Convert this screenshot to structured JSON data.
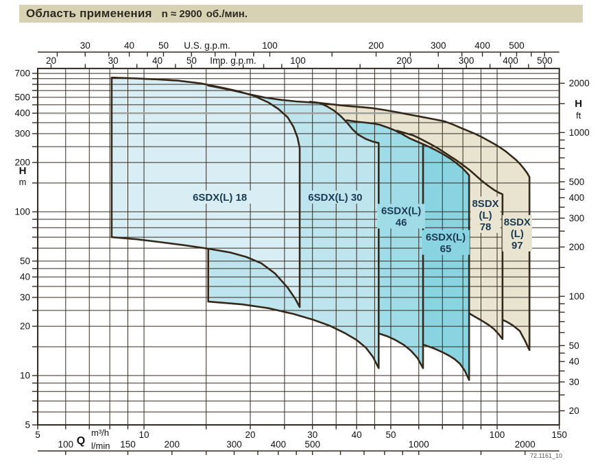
{
  "title": {
    "main": "Область применения",
    "speed": "n ≈ 2900",
    "unit": "об./мин."
  },
  "watermark": "72.1161_10",
  "colors": {
    "title_bar_bg": "#d8d2b4",
    "title_text": "#2e2920",
    "grid": "#33291f",
    "envelope": "#33281a",
    "highlight_line": "#9e9e98",
    "label_text": "#1c3a52"
  },
  "chart_data": {
    "type": "area",
    "title": "Область применения n ≈ 2900 об./мин.",
    "x_axis": {
      "symbol": "Q",
      "units": [
        "m³/h",
        "l/min"
      ]
    },
    "y_axis_left": {
      "symbol": "H",
      "unit": "m"
    },
    "y_axis_right": {
      "symbol": "H",
      "unit": "ft"
    },
    "xlim_m3h": [
      5,
      150
    ],
    "ylim_m": [
      5,
      750
    ],
    "grid_on": true,
    "highlight_line_h_m": 400,
    "grid": {
      "x_m3h": [
        5,
        6,
        7,
        8,
        9,
        10,
        15,
        20,
        25,
        30,
        35,
        40,
        45,
        50,
        60,
        70,
        80,
        90,
        100,
        150
      ],
      "y_m": [
        5,
        6,
        7,
        8,
        9,
        10,
        15,
        20,
        25,
        30,
        35,
        40,
        45,
        50,
        60,
        70,
        80,
        90,
        100,
        150,
        200,
        250,
        300,
        350,
        400,
        450,
        500,
        550,
        600,
        650,
        700
      ]
    },
    "axes": {
      "us_gpm": {
        "unit_label": "U.S. g.p.m.",
        "ticks": [
          25,
          30,
          35,
          40,
          45,
          50,
          60,
          70,
          80,
          90,
          100,
          150,
          200,
          250,
          300,
          350,
          400,
          450,
          500,
          550,
          600
        ],
        "labeled": [
          30,
          40,
          50,
          100,
          200,
          300,
          400,
          500
        ]
      },
      "imp_gpm": {
        "unit_label": "Imp. g.p.m.",
        "ticks": [
          20,
          25,
          30,
          35,
          40,
          45,
          50,
          60,
          70,
          80,
          90,
          100,
          150,
          200,
          250,
          300,
          350,
          400,
          450,
          500
        ],
        "labeled": [
          20,
          30,
          40,
          50,
          100,
          200,
          300,
          400,
          500
        ]
      },
      "m3h": {
        "unit_label": "m³/h",
        "ticks": [
          5,
          6,
          7,
          8,
          9,
          10,
          15,
          20,
          25,
          30,
          35,
          40,
          45,
          50,
          60,
          70,
          80,
          90,
          100,
          150
        ],
        "labeled": [
          5,
          10,
          20,
          30,
          40,
          50,
          100,
          150
        ]
      },
      "lmin": {
        "unit_label": "l/min",
        "ticks": [
          100,
          150,
          200,
          250,
          300,
          350,
          400,
          450,
          500,
          600,
          700,
          800,
          900,
          1000,
          1500,
          2000
        ],
        "labeled": [
          100,
          150,
          200,
          300,
          400,
          500,
          1000,
          2000
        ]
      },
      "h_m": {
        "symbol": "H",
        "unit_label": "m",
        "labeled": [
          700,
          500,
          400,
          300,
          200,
          100,
          50,
          40,
          30,
          20,
          10,
          5
        ]
      },
      "h_ft": {
        "symbol": "H",
        "unit_label": "ft",
        "ticks": [
          20,
          25,
          30,
          35,
          40,
          45,
          50,
          60,
          70,
          80,
          90,
          100,
          150,
          200,
          250,
          300,
          350,
          400,
          450,
          500,
          600,
          700,
          800,
          900,
          1000,
          1500,
          2000
        ],
        "labeled": [
          2000,
          1000,
          500,
          400,
          300,
          200,
          100,
          50,
          40,
          30,
          20
        ]
      }
    },
    "regions": [
      {
        "id": "8sdx-l-97",
        "name": "8SDX (L) 97",
        "label_lines": [
          "8SDX",
          "(L)",
          "97"
        ],
        "label_at_qh": [
          114,
          74
        ],
        "fill": "#e9e4d0",
        "stroke_points": [
          [
            29.5,
            470
          ],
          [
            32,
            460
          ],
          [
            35,
            450
          ],
          [
            38,
            442
          ],
          [
            41,
            436
          ],
          [
            44.2,
            430
          ],
          [
            47.5,
            420
          ],
          [
            51,
            409
          ],
          [
            54.5,
            398
          ],
          [
            57.7,
            389
          ],
          [
            61.5,
            379
          ],
          [
            65.5,
            369
          ],
          [
            69,
            361
          ],
          [
            71.2,
            356
          ],
          [
            75,
            341
          ],
          [
            79,
            325
          ],
          [
            83,
            311
          ],
          [
            86.4,
            300
          ],
          [
            90.5,
            286
          ],
          [
            95,
            270
          ],
          [
            99,
            257
          ],
          [
            101.7,
            248
          ],
          [
            105.5,
            235
          ],
          [
            109.5,
            220
          ],
          [
            113.5,
            206
          ],
          [
            116.1,
            196
          ],
          [
            119,
            184
          ],
          [
            121.5,
            173
          ],
          [
            123.5,
            163
          ],
          [
            123.5,
            14.3
          ],
          [
            120,
            16.3
          ],
          [
            116,
            18.7
          ],
          [
            111,
            20.2
          ],
          [
            107,
            21.2
          ],
          [
            103.6,
            21.9
          ]
        ],
        "close_points": [
          [
            92,
            24.5
          ],
          [
            80,
            26.8
          ],
          [
            68,
            28.6
          ],
          [
            55,
            30.5
          ],
          [
            42,
            32
          ],
          [
            29.5,
            33.5
          ]
        ],
        "closed_stroke": false
      },
      {
        "id": "8sdx-l-78",
        "name": "8SDX (L) 78",
        "label_lines": [
          "8SDX",
          "(L)",
          "78"
        ],
        "label_at_qh": [
          92.7,
          96
        ],
        "fill": "#eae5d2",
        "stroke_points": [
          [
            52,
            313
          ],
          [
            55,
            302
          ],
          [
            58,
            292
          ],
          [
            60,
            282
          ],
          [
            62,
            272
          ],
          [
            65,
            258
          ],
          [
            68,
            244
          ],
          [
            71,
            230
          ],
          [
            73.2,
            220
          ],
          [
            76.5,
            207
          ],
          [
            80,
            193
          ],
          [
            83.5,
            180
          ],
          [
            86.4,
            169
          ],
          [
            90,
            156
          ],
          [
            94,
            145
          ],
          [
            98,
            136
          ],
          [
            101,
            131
          ],
          [
            103.6,
            128
          ],
          [
            103.6,
            16.7
          ],
          [
            101,
            17.9
          ],
          [
            98,
            19.2
          ],
          [
            95.5,
            20.1
          ],
          [
            93.2,
            20.8
          ],
          [
            90,
            21.8
          ],
          [
            86.5,
            22.9
          ],
          [
            83.6,
            23.9
          ]
        ],
        "close_points": [
          [
            75,
            26
          ],
          [
            66,
            28
          ],
          [
            58,
            29.6
          ],
          [
            52,
            31
          ]
        ],
        "closed_stroke": false
      },
      {
        "id": "6sdx-l-65",
        "name": "6SDX(L) 65",
        "label_lines": [
          "6SDX(L)",
          "65"
        ],
        "label_at_qh": [
          71.5,
          65
        ],
        "fill": "#8ad4e1",
        "stroke_points": [
          [
            61.7,
            259
          ],
          [
            64.5,
            248
          ],
          [
            67.5,
            236
          ],
          [
            70.5,
            224
          ],
          [
            73.5,
            212
          ],
          [
            76.5,
            199
          ],
          [
            79.5,
            186
          ],
          [
            81.5,
            176
          ],
          [
            83.3,
            167
          ],
          [
            83.3,
            9.4
          ],
          [
            81,
            10.7
          ],
          [
            78.5,
            11.8
          ],
          [
            75.8,
            12.6
          ],
          [
            73.2,
            13.2
          ],
          [
            70,
            13.9
          ],
          [
            66,
            14.7
          ],
          [
            62,
            15.4
          ]
        ],
        "close_points": [
          [
            57,
            16.5
          ],
          [
            52,
            17.8
          ],
          [
            50,
            18.3
          ],
          [
            50,
            250
          ]
        ],
        "closed_stroke": false
      },
      {
        "id": "6sdx-l-46",
        "name": "6SDX(L) 46",
        "label_lines": [
          "6SDX(L)",
          "46"
        ],
        "label_at_qh": [
          53.5,
          94
        ],
        "fill": "#9fdce8",
        "stroke_points": [
          [
            37.5,
            362
          ],
          [
            40,
            355
          ],
          [
            42.5,
            350
          ],
          [
            44.2,
            347
          ],
          [
            46.5,
            340
          ],
          [
            49,
            327
          ],
          [
            51.5,
            313
          ],
          [
            54,
            297
          ],
          [
            56.5,
            281
          ],
          [
            59,
            270
          ],
          [
            61.7,
            259
          ],
          [
            61.7,
            11.1
          ],
          [
            59.5,
            12.8
          ],
          [
            57,
            14.2
          ],
          [
            54.4,
            15.4
          ],
          [
            51.5,
            16.5
          ],
          [
            48.8,
            17.4
          ],
          [
            46.2,
            18.1
          ]
        ],
        "close_points": [
          [
            41,
            20.3
          ],
          [
            37.5,
            21.6
          ]
        ],
        "closed_stroke": false
      },
      {
        "id": "6sdx-l-30",
        "name": "6SDX(L) 30",
        "label_lines": [
          "6SDX(L) 30"
        ],
        "label_at_qh": [
          34.8,
          123
        ],
        "fill": "#bee5ee",
        "stroke_points": [
          [
            15.2,
            590
          ],
          [
            16.5,
            570
          ],
          [
            18,
            548
          ],
          [
            20,
            520
          ],
          [
            22,
            498
          ],
          [
            24.5,
            482
          ],
          [
            27,
            472
          ],
          [
            29.5,
            466
          ],
          [
            31.5,
            461
          ],
          [
            33,
            440
          ],
          [
            34.5,
            415
          ],
          [
            36,
            385
          ],
          [
            37.5,
            352
          ],
          [
            39,
            318
          ],
          [
            40.5,
            295
          ],
          [
            42.5,
            278
          ],
          [
            44.5,
            268
          ],
          [
            46.2,
            263
          ],
          [
            46.2,
            11.1
          ],
          [
            44.5,
            13
          ],
          [
            42.5,
            14.8
          ],
          [
            40,
            16.5
          ],
          [
            37,
            18.2
          ],
          [
            33.5,
            20.2
          ],
          [
            30,
            22
          ],
          [
            26.5,
            23.8
          ],
          [
            22.5,
            25.8
          ],
          [
            19,
            27.2
          ],
          [
            15.2,
            28.3
          ],
          [
            15.2,
            59.5
          ]
        ],
        "close_points": [],
        "closed_stroke": false
      },
      {
        "id": "6sdx-l-18",
        "name": "6SDX(L) 18",
        "label_lines": [
          "6SDX(L) 18"
        ],
        "label_at_qh": [
          16.4,
          123
        ],
        "fill": "#d9eef4",
        "stroke_points": [
          [
            8.1,
            660
          ],
          [
            9.5,
            652
          ],
          [
            11,
            643
          ],
          [
            12.5,
            632
          ],
          [
            14.5,
            608
          ],
          [
            16.5,
            575
          ],
          [
            18.5,
            545
          ],
          [
            20.5,
            510
          ],
          [
            22.5,
            465
          ],
          [
            24,
            425
          ],
          [
            25.5,
            378
          ],
          [
            26.5,
            330
          ],
          [
            27.2,
            285
          ],
          [
            27.6,
            245
          ],
          [
            27.6,
            26.2
          ],
          [
            26.8,
            29.5
          ],
          [
            25.5,
            34.5
          ],
          [
            23.5,
            42
          ],
          [
            21.5,
            48.5
          ],
          [
            19.5,
            53
          ],
          [
            17.5,
            56.5
          ],
          [
            15.2,
            59.5
          ],
          [
            13,
            62.5
          ],
          [
            11,
            65.5
          ],
          [
            9.5,
            68
          ],
          [
            8.1,
            70
          ]
        ],
        "close_points": [],
        "closed_stroke": true
      }
    ]
  }
}
